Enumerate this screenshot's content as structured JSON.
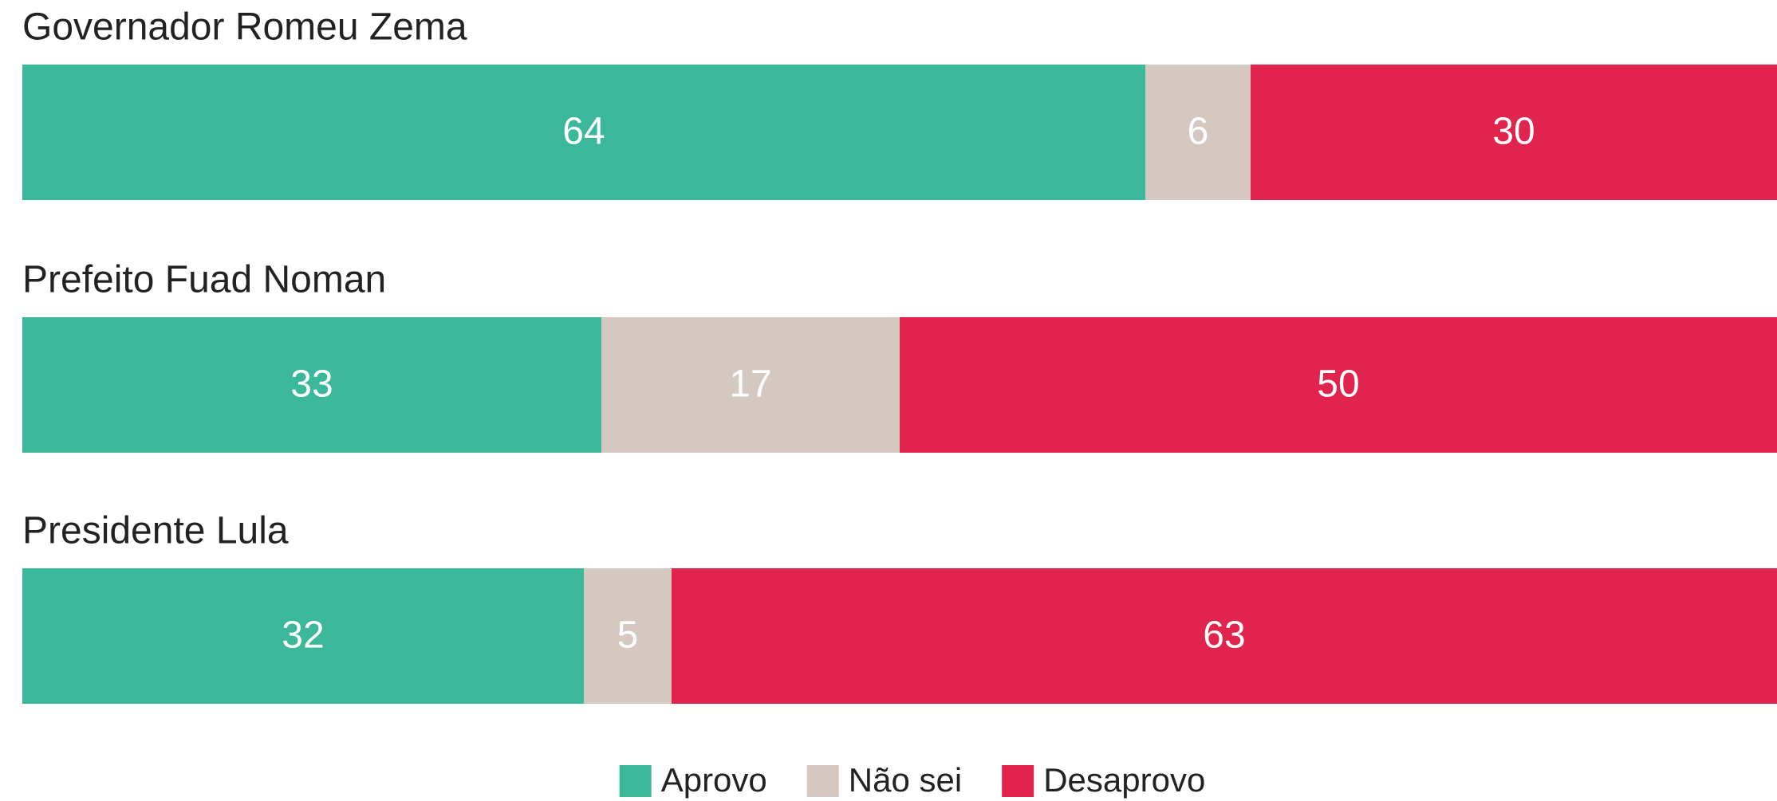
{
  "chart_data": {
    "type": "stacked-bar-horizontal",
    "categories": [
      "Governador Romeu Zema",
      "Prefeito Fuad Noman",
      "Presidente Lula"
    ],
    "series": [
      {
        "name": "Aprovo",
        "color": "#3bb89a",
        "values": [
          64,
          33,
          32
        ]
      },
      {
        "name": "Não sei",
        "color": "#d5c8c1",
        "values": [
          6,
          17,
          5
        ]
      },
      {
        "name": "Desaprovo",
        "color": "#e0244d",
        "values": [
          30,
          50,
          63
        ]
      }
    ],
    "xlim": [
      0,
      100
    ]
  }
}
